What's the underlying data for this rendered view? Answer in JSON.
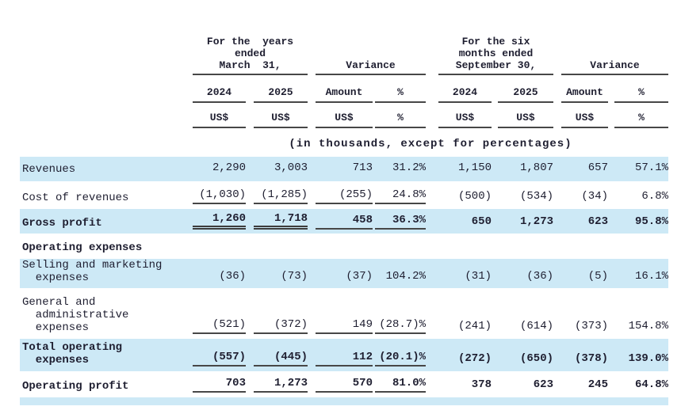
{
  "colors": {
    "row_highlight": "#cde9f6",
    "text": "#1e1e30",
    "rule": "#474747"
  },
  "table": {
    "groups": [
      {
        "label": "For the  years\nended\nMarch  31,"
      },
      {
        "label": "Variance"
      },
      {
        "label": "For the six\nmonths ended\nSeptember 30,"
      },
      {
        "label": "Variance"
      }
    ],
    "sub_headers": [
      "2024",
      "2025",
      "Amount",
      "%",
      "2024",
      "2025",
      "Amount",
      "%"
    ],
    "units": [
      "US$",
      "US$",
      "US$",
      "%",
      "US$",
      "US$",
      "US$",
      "%"
    ],
    "note": "(in thousands, except for percentages)",
    "rows": [
      {
        "label": "Revenues",
        "bold": false,
        "shaded": true,
        "values": [
          "2,290",
          "3,003",
          "713",
          "31.2%",
          "1,150",
          "1,807",
          "657",
          "57.1%"
        ],
        "rules": [
          "",
          "",
          "",
          "",
          "",
          "",
          "",
          ""
        ]
      },
      {
        "label": "Cost of revenues",
        "bold": false,
        "shaded": false,
        "values": [
          "(1,030)",
          "(1,285)",
          "(255)",
          "24.8%",
          "(500)",
          "(534)",
          "(34)",
          "6.8%"
        ],
        "rules": [
          "s",
          "s",
          "s",
          "s",
          "",
          "",
          "",
          ""
        ]
      },
      {
        "label": "Gross profit",
        "bold": true,
        "shaded": true,
        "values": [
          "1,260",
          "1,718",
          "458",
          "36.3%",
          "650",
          "1,273",
          "623",
          "95.8%"
        ],
        "rules": [
          "d",
          "d",
          "s",
          "s",
          "",
          "",
          "",
          ""
        ]
      },
      {
        "label": "Operating expenses",
        "bold": true,
        "shaded": false,
        "values": [],
        "rules": []
      },
      {
        "label": "Selling and marketing\n  expenses",
        "bold": false,
        "shaded": true,
        "values": [
          "(36)",
          "(73)",
          "(37)",
          "104.2%",
          "(31)",
          "(36)",
          "(5)",
          "16.1%"
        ],
        "rules": [
          "",
          "",
          "",
          "",
          "",
          "",
          "",
          ""
        ]
      },
      {
        "label": "General and\n  administrative\n  expenses",
        "bold": false,
        "shaded": false,
        "values": [
          "(521)",
          "(372)",
          "149",
          "(28.7)%",
          "(241)",
          "(614)",
          "(373)",
          "154.8%"
        ],
        "rules": [
          "s",
          "s",
          "s",
          "s",
          "",
          "",
          "",
          ""
        ]
      },
      {
        "label": "Total operating\n  expenses",
        "bold": true,
        "shaded": true,
        "values": [
          "(557)",
          "(445)",
          "112",
          "(20.1)%",
          "(272)",
          "(650)",
          "(378)",
          "139.0%"
        ],
        "rules": [
          "s",
          "s",
          "s",
          "s",
          "",
          "",
          "",
          ""
        ]
      },
      {
        "label": "Operating profit",
        "bold": true,
        "shaded": false,
        "values": [
          "703",
          "1,273",
          "570",
          "81.0%",
          "378",
          "623",
          "245",
          "64.8%"
        ],
        "rules": [
          "s",
          "s",
          "s",
          "s",
          "",
          "",
          "",
          ""
        ]
      }
    ],
    "partial_row": {
      "shaded": true
    }
  }
}
